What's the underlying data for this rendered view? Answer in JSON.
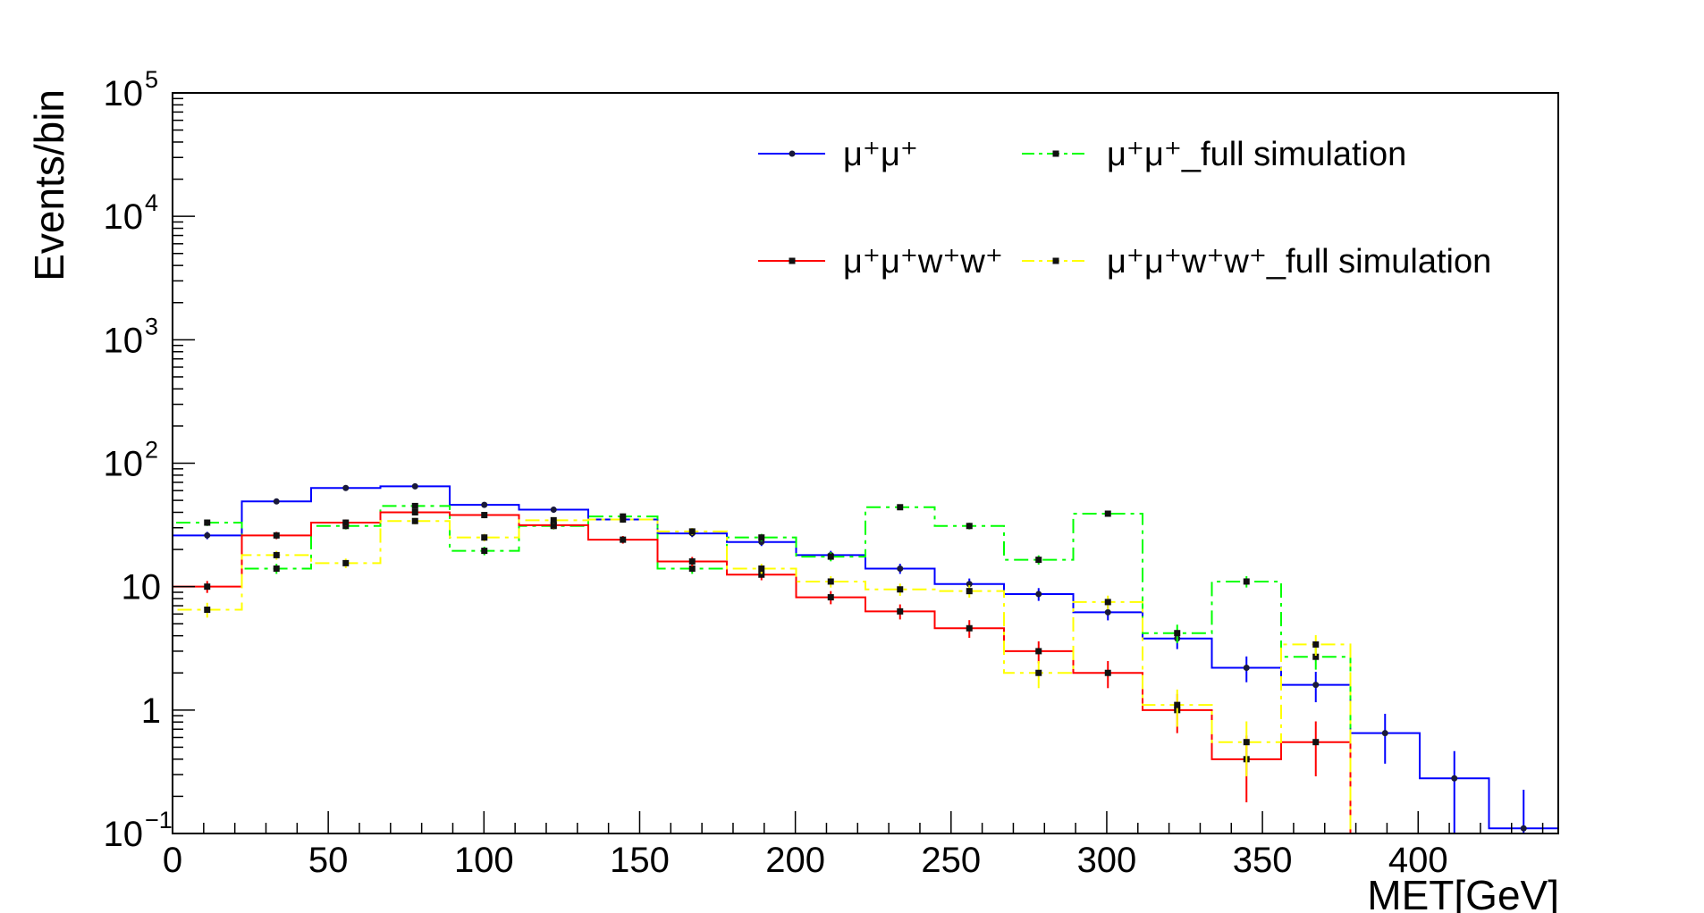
{
  "chart_data": {
    "type": "histogram",
    "title": "",
    "xlabel": "MET[GeV]",
    "ylabel": "Events/bin",
    "xlim": [
      0,
      445
    ],
    "ylim": [
      0.1,
      100000
    ],
    "yscale": "log",
    "bin_width": 22.25,
    "x_ticks": [
      "0",
      "50",
      "100",
      "150",
      "200",
      "250",
      "300",
      "350",
      "400"
    ],
    "y_ticks": [
      {
        "value": 0.1,
        "base": "10",
        "exp": "−1"
      },
      {
        "value": 1,
        "base": "1",
        "exp": ""
      },
      {
        "value": 10,
        "base": "10",
        "exp": ""
      },
      {
        "value": 100,
        "base": "10",
        "exp": "2"
      },
      {
        "value": 1000,
        "base": "10",
        "exp": "3"
      },
      {
        "value": 10000,
        "base": "10",
        "exp": "4"
      },
      {
        "value": 100000,
        "base": "10",
        "exp": "5"
      }
    ],
    "legend": {
      "position": "top-right"
    },
    "series": [
      {
        "name": "μ⁺μ⁺",
        "color": "#0000ff",
        "dash": "solid",
        "values": [
          26,
          49,
          63,
          65,
          46,
          42,
          35,
          27,
          23,
          18,
          14,
          10.5,
          8.7,
          6.2,
          3.8,
          2.2,
          1.6,
          0.65,
          0.28,
          0.11
        ]
      },
      {
        "name": "μ⁺μ⁺_full simulation",
        "color": "#00ff00",
        "dash": "dashed",
        "values": [
          33,
          14,
          31,
          45,
          19.5,
          31,
          37,
          14,
          25,
          17.5,
          44,
          31,
          16.5,
          39,
          4.2,
          11,
          2.7,
          0.1,
          0.1,
          0.1
        ]
      },
      {
        "name": "μ⁺μ⁺w⁺w⁺",
        "color": "#ff0000",
        "dash": "solid",
        "values": [
          10,
          26,
          33,
          40,
          38,
          31.5,
          24,
          16,
          12.5,
          8.2,
          6.3,
          4.6,
          3,
          2,
          1,
          0.4,
          0.55,
          0.1,
          0.1,
          0.1
        ]
      },
      {
        "name": "μ⁺μ⁺w⁺w⁺_full simulation",
        "color": "#ffff00",
        "dash": "dashed",
        "values": [
          6.5,
          18,
          15.5,
          34,
          25,
          34.5,
          35,
          28,
          14,
          11,
          9.5,
          9.2,
          2,
          7.5,
          1.1,
          0.55,
          3.4,
          0.1,
          0.1,
          0.1
        ]
      }
    ]
  }
}
